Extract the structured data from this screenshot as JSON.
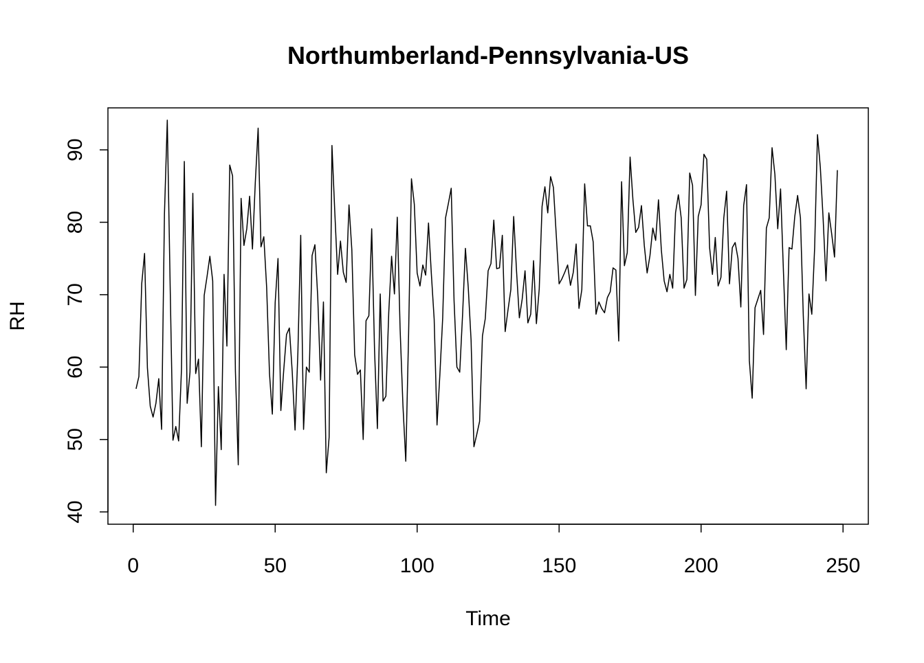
{
  "chart_data": {
    "type": "line",
    "title": "Northumberland-Pennsylvania-US",
    "xlabel": "Time",
    "ylabel": "RH",
    "xlim": [
      -8.9,
      258.9
    ],
    "ylim": [
      38.3,
      95.8
    ],
    "x_ticks": [
      0,
      50,
      100,
      150,
      200,
      250
    ],
    "y_ticks": [
      40,
      50,
      60,
      70,
      80,
      90
    ],
    "grid": false,
    "legend": "none",
    "colors": {
      "line": "#000000",
      "frame": "#000000",
      "background": "#ffffff"
    },
    "x_start": 1,
    "x_step": 1,
    "series": [
      {
        "values": [
          57.0,
          58.7,
          71.5,
          75.7,
          59.9,
          54.6,
          53.1,
          55.0,
          58.4,
          51.4,
          81.1,
          94.1,
          71.5,
          49.9,
          51.8,
          49.8,
          59.7,
          88.4,
          55.0,
          59.3,
          84.0,
          59.1,
          61.1,
          49.0,
          69.9,
          72.5,
          75.3,
          71.9,
          40.9,
          57.3,
          48.6,
          72.8,
          62.9,
          87.9,
          86.4,
          59.4,
          46.5,
          83.3,
          76.8,
          79.1,
          83.6,
          76.3,
          85.5,
          93.0,
          76.6,
          78.0,
          71.0,
          59.1,
          53.5,
          68.9,
          75.0,
          54.0,
          59.5,
          64.5,
          65.4,
          59.4,
          51.3,
          62.0,
          78.2,
          51.4,
          60.0,
          59.3,
          75.4,
          76.9,
          69.6,
          58.2,
          69.0,
          45.4,
          50.3,
          90.6,
          81.4,
          72.8,
          77.4,
          73.1,
          71.7,
          82.4,
          76.2,
          61.7,
          59.0,
          59.6,
          50.0,
          66.4,
          67.1,
          79.1,
          62.3,
          51.5,
          70.1,
          55.3,
          56.0,
          67.5,
          75.3,
          70.1,
          80.7,
          65.3,
          54.7,
          47.0,
          64.7,
          86.0,
          82.5,
          73.0,
          71.2,
          74.1,
          72.7,
          79.9,
          72.9,
          66.6,
          52.0,
          58.9,
          66.8,
          80.6,
          82.6,
          84.7,
          69.2,
          60.0,
          59.3,
          67.2,
          76.4,
          71.0,
          63.7,
          49.0,
          50.7,
          52.5,
          64.3,
          66.7,
          73.3,
          74.3,
          80.3,
          73.6,
          73.7,
          78.2,
          64.9,
          67.9,
          70.7,
          80.8,
          73.3,
          66.8,
          69.4,
          73.3,
          66.1,
          67.3,
          74.7,
          66.0,
          70.8,
          82.2,
          84.9,
          81.3,
          86.3,
          84.8,
          78.2,
          71.5,
          72.2,
          73.1,
          74.1,
          71.3,
          73.1,
          77.0,
          68.1,
          70.7,
          85.3,
          79.5,
          79.5,
          77.3,
          67.3,
          69.0,
          68.1,
          67.5,
          69.6,
          70.4,
          73.7,
          73.4,
          63.6,
          85.6,
          74.0,
          75.8,
          89.0,
          83.1,
          78.6,
          79.3,
          82.3,
          76.8,
          73.0,
          75.4,
          79.2,
          77.5,
          83.1,
          76.2,
          71.9,
          70.4,
          72.8,
          70.9,
          81.3,
          83.8,
          80.6,
          70.9,
          72.1,
          86.8,
          85.1,
          69.9,
          80.8,
          82.4,
          89.4,
          88.7,
          76.5,
          72.8,
          77.9,
          71.2,
          72.4,
          80.6,
          84.3,
          71.5,
          76.5,
          77.2,
          75.0,
          68.3,
          82.3,
          85.2,
          60.9,
          55.7,
          68.2,
          69.4,
          70.6,
          64.5,
          79.2,
          80.6,
          90.3,
          86.6,
          79.1,
          84.6,
          73.3,
          62.4,
          76.5,
          76.3,
          80.8,
          83.7,
          80.6,
          67.1,
          57.0,
          70.1,
          67.3,
          76.5,
          92.1,
          87.6,
          80.4,
          71.9,
          81.3,
          78.4,
          75.2,
          87.2
        ]
      }
    ]
  }
}
